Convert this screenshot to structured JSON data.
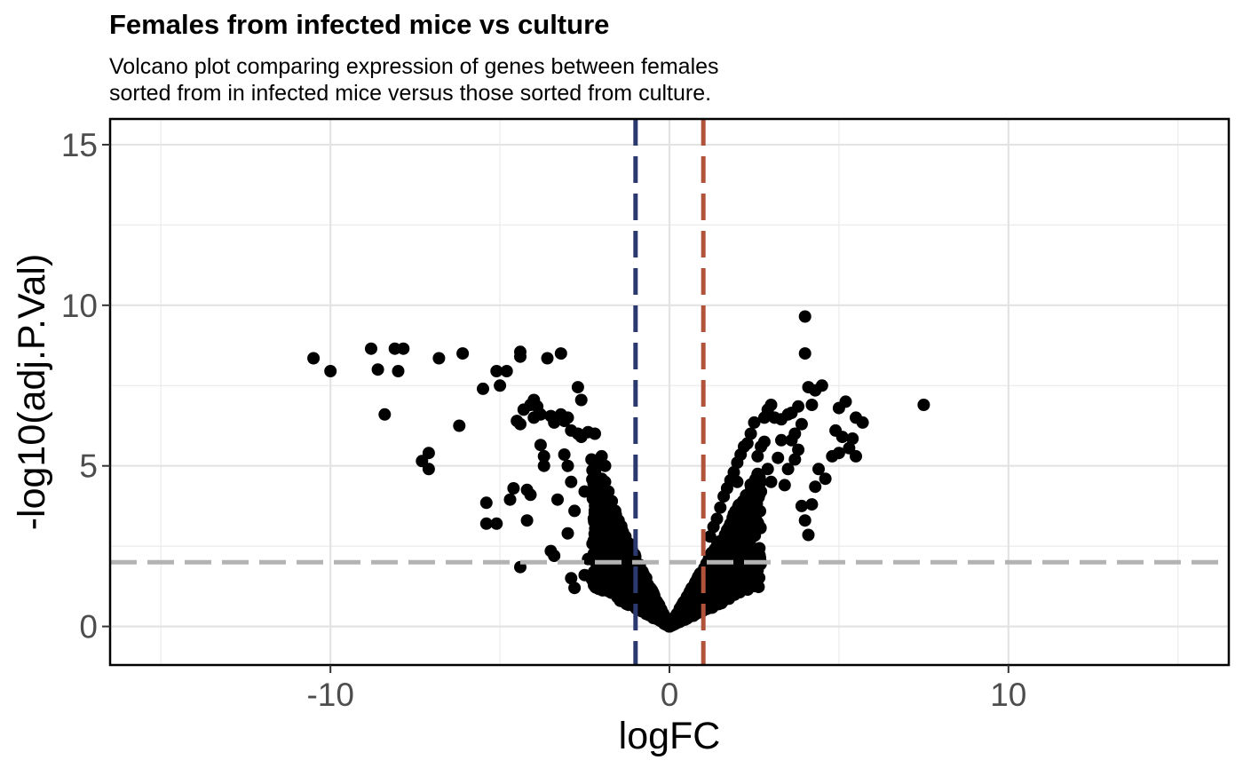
{
  "chart_data": {
    "type": "scatter",
    "title": "Females from infected mice vs culture",
    "subtitle_lines": [
      "Volcano plot comparing expression of genes between females",
      "sorted from in infected mice versus those sorted from culture."
    ],
    "xlabel": "logFC",
    "ylabel": "-log10(adj.P.Val)",
    "xlim": [
      -16.5,
      16.5
    ],
    "ylim": [
      -1.2,
      15.8
    ],
    "x_ticks": [
      -10,
      0,
      10
    ],
    "x_tick_labels": [
      "-10",
      "0",
      "10"
    ],
    "x_minor_ticks": [
      -15,
      -5,
      5,
      15
    ],
    "y_ticks": [
      0,
      5,
      10,
      15
    ],
    "y_tick_labels": [
      "0",
      "5",
      "10",
      "15"
    ],
    "y_minor_ticks": [
      2.5,
      7.5,
      12.5
    ],
    "grid": true,
    "reference_lines": [
      {
        "orientation": "vertical",
        "value": -1,
        "color": "#2b3a6e",
        "style": "dashed"
      },
      {
        "orientation": "vertical",
        "value": 1,
        "color": "#b0533a",
        "style": "dashed"
      },
      {
        "orientation": "horizontal",
        "value": 2,
        "color": "#b3b3b3",
        "style": "dashed"
      }
    ],
    "point_color": "#000000",
    "points": [
      [
        -10.5,
        8.35
      ],
      [
        -10.0,
        7.95
      ],
      [
        -8.8,
        8.65
      ],
      [
        -8.6,
        8.0
      ],
      [
        -8.4,
        6.6
      ],
      [
        -8.1,
        8.65
      ],
      [
        -8.0,
        7.95
      ],
      [
        -7.85,
        8.65
      ],
      [
        -7.3,
        5.15
      ],
      [
        -7.1,
        5.4
      ],
      [
        -7.1,
        4.9
      ],
      [
        -6.8,
        8.35
      ],
      [
        -6.2,
        6.25
      ],
      [
        -6.1,
        8.5
      ],
      [
        -5.5,
        7.4
      ],
      [
        -5.4,
        3.85
      ],
      [
        -5.4,
        3.2
      ],
      [
        -5.1,
        3.2
      ],
      [
        -5.1,
        7.95
      ],
      [
        -5.0,
        7.5
      ],
      [
        -4.8,
        7.95
      ],
      [
        -4.7,
        3.95
      ],
      [
        -4.6,
        4.3
      ],
      [
        -4.5,
        6.4
      ],
      [
        -4.4,
        8.55
      ],
      [
        -4.4,
        8.4
      ],
      [
        -4.4,
        6.3
      ],
      [
        -4.3,
        6.75
      ],
      [
        -4.2,
        4.25
      ],
      [
        -4.2,
        3.3
      ],
      [
        -4.1,
        6.9
      ],
      [
        -4.1,
        4.1
      ],
      [
        -4.0,
        7.05
      ],
      [
        -4.0,
        6.5
      ],
      [
        -3.9,
        6.85
      ],
      [
        -3.8,
        5.65
      ],
      [
        -3.8,
        6.6
      ],
      [
        -3.7,
        5.3
      ],
      [
        -3.7,
        5.0
      ],
      [
        -3.6,
        8.35
      ],
      [
        -3.5,
        6.55
      ],
      [
        -3.4,
        6.35
      ],
      [
        -3.3,
        3.95
      ],
      [
        -3.2,
        8.5
      ],
      [
        -3.2,
        6.6
      ],
      [
        -3.1,
        6.4
      ],
      [
        -3.1,
        5.35
      ],
      [
        -3.0,
        6.5
      ],
      [
        -3.0,
        5.0
      ],
      [
        -2.9,
        6.1
      ],
      [
        -2.9,
        4.5
      ],
      [
        -2.8,
        3.6
      ],
      [
        -2.7,
        7.45
      ],
      [
        -2.7,
        6.0
      ],
      [
        -2.6,
        7.05
      ],
      [
        -2.6,
        5.9
      ],
      [
        -2.5,
        4.2
      ],
      [
        -2.4,
        6.05
      ],
      [
        -2.3,
        5.2
      ],
      [
        -2.2,
        6.0
      ],
      [
        -2.2,
        4.8
      ],
      [
        -2.1,
        5.0
      ],
      [
        -2.0,
        5.3
      ],
      [
        -2.0,
        4.6
      ],
      [
        -1.9,
        5.0
      ],
      [
        -1.9,
        4.5
      ],
      [
        -1.8,
        4.2
      ],
      [
        -1.7,
        3.9
      ],
      [
        -1.6,
        3.6
      ],
      [
        -1.5,
        3.3
      ],
      [
        -1.4,
        3.0
      ],
      [
        -1.3,
        2.8
      ],
      [
        -3.5,
        2.35
      ],
      [
        -3.4,
        2.2
      ],
      [
        -3.0,
        2.9
      ],
      [
        -2.9,
        1.5
      ],
      [
        -2.8,
        1.2
      ],
      [
        -2.5,
        1.6
      ],
      [
        -2.4,
        2.1
      ],
      [
        -4.4,
        1.85
      ],
      [
        -2.2,
        1.3
      ],
      [
        -2.0,
        2.0
      ],
      [
        -1.8,
        1.1
      ],
      [
        -1.6,
        1.4
      ],
      [
        4.0,
        9.65
      ],
      [
        4.0,
        8.5
      ],
      [
        4.1,
        7.45
      ],
      [
        4.3,
        7.35
      ],
      [
        4.5,
        7.5
      ],
      [
        4.2,
        6.9
      ],
      [
        3.8,
        6.85
      ],
      [
        3.6,
        6.65
      ],
      [
        3.5,
        6.6
      ],
      [
        3.3,
        6.45
      ],
      [
        3.1,
        6.5
      ],
      [
        3.0,
        6.9
      ],
      [
        2.9,
        6.75
      ],
      [
        2.8,
        6.5
      ],
      [
        2.5,
        6.35
      ],
      [
        2.4,
        6.0
      ],
      [
        2.3,
        5.7
      ],
      [
        2.2,
        5.6
      ],
      [
        2.1,
        5.35
      ],
      [
        2.0,
        5.1
      ],
      [
        1.9,
        4.8
      ],
      [
        1.8,
        4.55
      ],
      [
        1.7,
        4.3
      ],
      [
        1.6,
        4.05
      ],
      [
        1.5,
        3.7
      ],
      [
        1.4,
        3.35
      ],
      [
        1.3,
        3.1
      ],
      [
        1.2,
        2.8
      ],
      [
        5.0,
        6.8
      ],
      [
        5.2,
        7.0
      ],
      [
        5.5,
        6.5
      ],
      [
        5.7,
        6.35
      ],
      [
        5.4,
        5.85
      ],
      [
        5.5,
        5.3
      ],
      [
        5.3,
        5.55
      ],
      [
        5.1,
        5.9
      ],
      [
        5.0,
        5.4
      ],
      [
        4.9,
        6.1
      ],
      [
        4.8,
        5.3
      ],
      [
        4.6,
        4.6
      ],
      [
        4.4,
        4.9
      ],
      [
        4.3,
        4.35
      ],
      [
        4.2,
        3.8
      ],
      [
        4.1,
        2.85
      ],
      [
        4.0,
        3.3
      ],
      [
        3.9,
        3.75
      ],
      [
        3.8,
        5.5
      ],
      [
        3.7,
        5.2
      ],
      [
        3.5,
        4.9
      ],
      [
        3.4,
        4.4
      ],
      [
        3.3,
        5.8
      ],
      [
        3.2,
        5.25
      ],
      [
        3.0,
        4.5
      ],
      [
        2.9,
        4.9
      ],
      [
        2.7,
        4.2
      ],
      [
        2.6,
        5.3
      ],
      [
        2.5,
        4.0
      ],
      [
        2.4,
        4.4
      ],
      [
        2.3,
        3.7
      ],
      [
        2.2,
        3.9
      ],
      [
        2.0,
        4.5
      ],
      [
        1.9,
        3.5
      ],
      [
        1.8,
        3.2
      ],
      [
        1.7,
        3.0
      ],
      [
        7.5,
        6.9
      ],
      [
        3.9,
        6.3
      ],
      [
        3.7,
        6.0
      ],
      [
        3.6,
        5.8
      ],
      [
        2.7,
        5.6
      ],
      [
        2.8,
        5.75
      ],
      [
        2.6,
        4.75
      ]
    ]
  }
}
